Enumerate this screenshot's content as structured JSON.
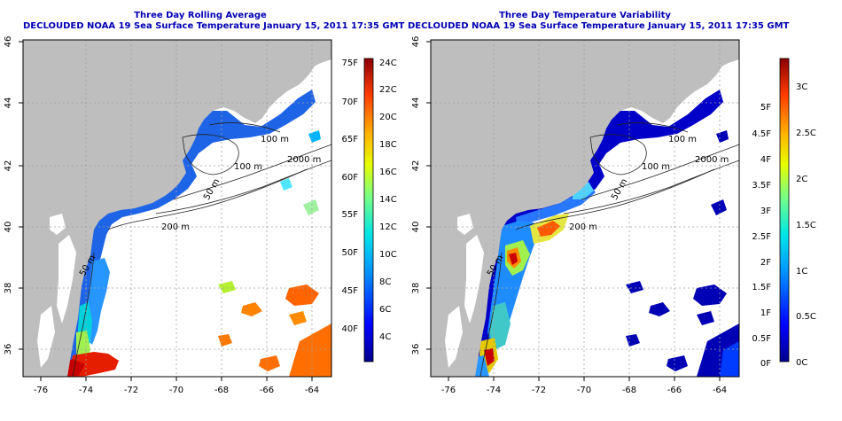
{
  "maps": [
    {
      "title": "Three Day Rolling Average",
      "subtitle": "DECLOUDED NOAA 19 Sea Surface Temperature January 15, 2011 17:35 GMT",
      "colorbar_left_labels": [
        "75F",
        "70F",
        "65F",
        "60F",
        "55F",
        "50F",
        "45F",
        "40F"
      ],
      "colorbar_right_labels": [
        "24C",
        "22C",
        "20C",
        "18C",
        "16C",
        "14C",
        "12C",
        "10C",
        "8C",
        "6C",
        "4C"
      ]
    },
    {
      "title": "Three Day Temperature Variability",
      "subtitle": "DECLOUDED NOAA 19 Sea Surface Temperature January 15, 2011 17:35 GMT",
      "colorbar_left_labels": [
        "5F",
        "4.5F",
        "4F",
        "3.5F",
        "3F",
        "2.5F",
        "2F",
        "1.5F",
        "1F",
        "0.5F",
        "0F"
      ],
      "colorbar_right_labels": [
        "3C",
        "2.5C",
        "2C",
        "1.5C",
        "1C",
        "0.5C",
        "0C"
      ]
    }
  ],
  "lon_ticks": [
    "-76",
    "-74",
    "-72",
    "-70",
    "-68",
    "-66",
    "-64"
  ],
  "lat_ticks": [
    "46",
    "44",
    "42",
    "40",
    "38",
    "36"
  ],
  "contour_labels": [
    "100 m",
    "100 m",
    "2000 m",
    "50 m",
    "200 m",
    "50 m"
  ],
  "colors": {
    "land": "#bebebe",
    "title": "#0000b4",
    "grid": "#a0a0a0"
  }
}
